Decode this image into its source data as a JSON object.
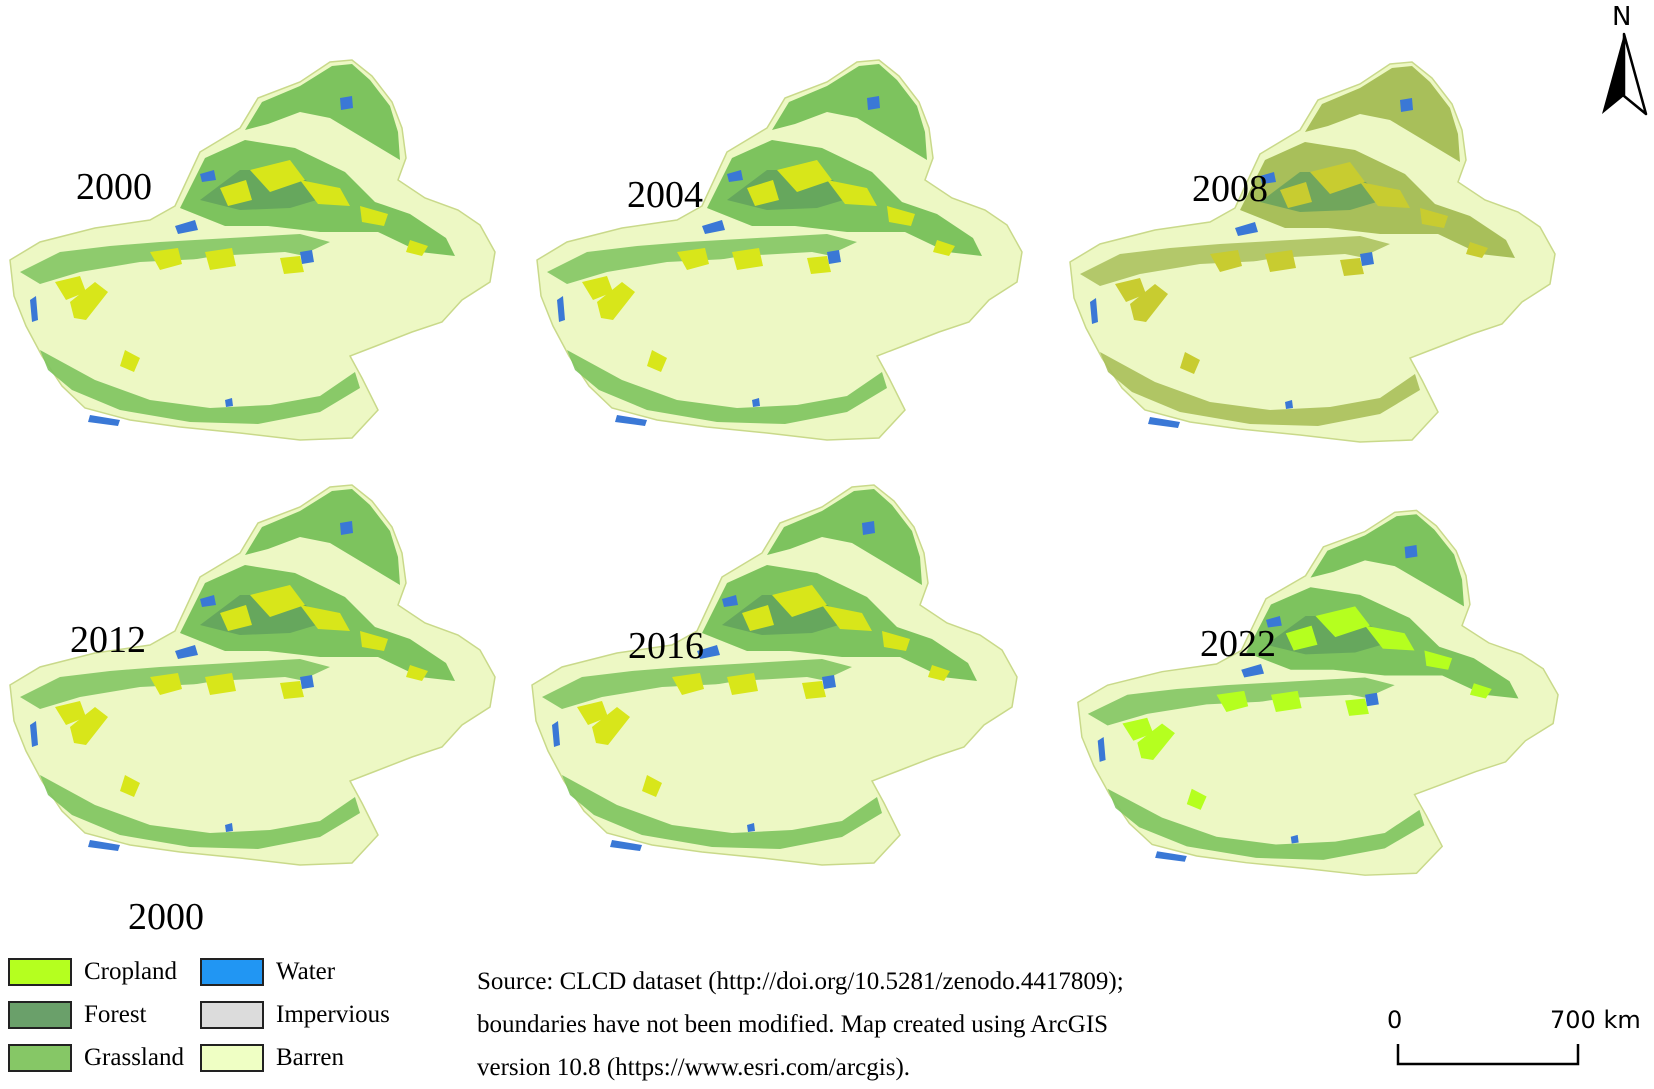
{
  "maps": [
    {
      "year": "2000",
      "style": "base"
    },
    {
      "year": "2004",
      "style": "base"
    },
    {
      "year": "2008",
      "style": "olive"
    },
    {
      "year": "2012",
      "style": "base"
    },
    {
      "year": "2016",
      "style": "base"
    },
    {
      "year": "2022",
      "style": "bright"
    }
  ],
  "extra_label": "2000",
  "legend": [
    {
      "label": "Cropland",
      "color": "#b5ff1f"
    },
    {
      "label": "Forest",
      "color": "#6aa06a"
    },
    {
      "label": "Grassland",
      "color": "#86c766"
    },
    {
      "label": "Water",
      "color": "#2196f3"
    },
    {
      "label": "Impervious",
      "color": "#dcdcdc"
    },
    {
      "label": "Barren",
      "color": "#efffc4"
    }
  ],
  "source_lines": [
    "Source: CLCD dataset (http://doi.org/10.5281/zenodo.4417809);",
    "boundaries have not been modified. Map created using ArcGIS",
    "version 10.8 (https://www.esri.com/arcgis)."
  ],
  "scale": {
    "start": "0",
    "end": "700 km"
  },
  "north_label": "N",
  "palette": {
    "barren": "#edf8c4",
    "grassland": "#7dc35e",
    "forest": "#5f9e5d",
    "cropland_base": "#d8e61a",
    "cropland_bright": "#b5ff1f",
    "olive_grass": "#a8bf5a",
    "water": "#3a78d6",
    "outline": "#c9d98a"
  }
}
